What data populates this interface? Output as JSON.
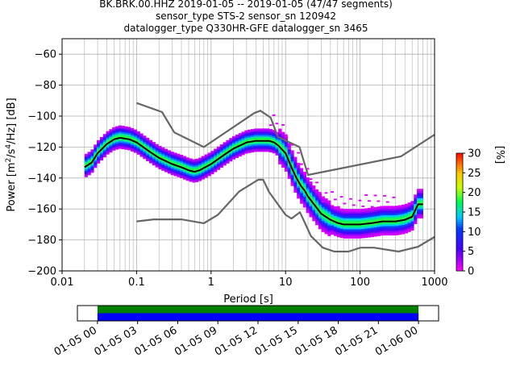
{
  "chart_data": {
    "type": "heatmap",
    "title_lines": [
      "BK.BRK.00.HHZ   2019-01-05 -- 2019-01-05  (47/47 segments)",
      "sensor_type STS-2 sensor_sn 120942",
      "datalogger_type Q330HR-GFE datalogger_sn 3465"
    ],
    "xlabel": "Period [s]",
    "ylabel_parts": [
      "Power [m",
      "2",
      "/s",
      "4",
      "/Hz] [dB]"
    ],
    "x_scale": "log",
    "xlim": [
      0.01,
      1000
    ],
    "ylim": [
      -200,
      -50
    ],
    "x_ticks": [
      0.01,
      0.1,
      1,
      10,
      100,
      1000
    ],
    "x_tick_labels": [
      "0.01",
      "0.1",
      "1",
      "10",
      "100",
      "1000"
    ],
    "y_ticks": [
      -60,
      -80,
      -100,
      -120,
      -140,
      -160,
      -180,
      -200
    ],
    "y_tick_labels": [
      "−60",
      "−80",
      "−100",
      "−120",
      "−140",
      "−160",
      "−180",
      "−200"
    ],
    "grid": true,
    "colorbar": {
      "label": "[%]",
      "range": [
        0,
        30
      ],
      "ticks": [
        0,
        5,
        10,
        15,
        20,
        25,
        30
      ],
      "tick_labels": [
        "0",
        "5",
        "10",
        "15",
        "20",
        "25",
        "30"
      ]
    },
    "series": [
      {
        "role": "mean",
        "color": "#000000",
        "x": [
          0.02,
          0.025,
          0.03,
          0.04,
          0.05,
          0.06,
          0.08,
          0.1,
          0.15,
          0.2,
          0.3,
          0.4,
          0.5,
          0.6,
          0.7,
          1,
          1.5,
          2,
          3,
          4,
          5,
          6,
          7,
          8,
          10,
          12,
          14,
          16,
          18,
          20,
          25,
          30,
          40,
          50,
          60,
          80,
          100,
          150,
          200,
          300,
          400,
          500,
          600,
          700
        ],
        "y": [
          -133,
          -130,
          -124,
          -118,
          -115,
          -114,
          -115,
          -117,
          -123,
          -127,
          -131,
          -133,
          -135,
          -136,
          -135,
          -131,
          -125,
          -121,
          -117,
          -116,
          -116,
          -116,
          -117,
          -119,
          -124,
          -133,
          -140,
          -145,
          -148,
          -152,
          -158,
          -163,
          -167,
          -169,
          -170,
          -170,
          -170,
          -169,
          -168,
          -168,
          -167,
          -165,
          -157,
          -157
        ]
      },
      {
        "role": "high_noise_model",
        "color": "#666666",
        "x": [
          0.1,
          0.22,
          0.32,
          0.8,
          3.8,
          4.6,
          6.3,
          7.9,
          15.4,
          20,
          354.8,
          1000
        ],
        "y": [
          -91.5,
          -97.4,
          -110.5,
          -120,
          -98,
          -96.5,
          -101,
          -113.5,
          -120,
          -138,
          -126,
          -112
        ]
      },
      {
        "role": "low_noise_model",
        "color": "#666666",
        "x": [
          0.1,
          0.17,
          0.4,
          0.8,
          1.24,
          2.4,
          4.3,
          5,
          6,
          10,
          12,
          15.6,
          21.9,
          31.6,
          45,
          70,
          101,
          154,
          328,
          600,
          1000
        ],
        "y": [
          -168,
          -166.7,
          -166.7,
          -169.2,
          -163.7,
          -148.6,
          -141.1,
          -141.1,
          -149,
          -163.8,
          -166.2,
          -162.1,
          -177.5,
          -185,
          -187.5,
          -187.5,
          -185,
          -185,
          -187.5,
          -184.4,
          -178
        ]
      }
    ],
    "time_axis": {
      "tick_labels": [
        "01-05 00",
        "01-05 03",
        "01-05 06",
        "01-05 09",
        "01-05 12",
        "01-05 15",
        "01-05 18",
        "01-05 21",
        "01-06 00"
      ],
      "range_hours": [
        -1.5,
        25.5
      ],
      "coverage_hours": [
        0,
        24
      ],
      "band_colors": [
        "#008000",
        "#0000ff"
      ]
    }
  }
}
